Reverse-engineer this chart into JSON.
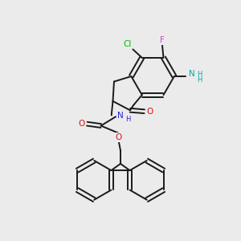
{
  "bg": "#ebebeb",
  "bc": "#1a1a1a",
  "F_color": "#cc44cc",
  "Cl_color": "#00bb00",
  "N_color": "#2222dd",
  "O_color": "#dd1111",
  "NH2_color": "#00aaaa",
  "lw": 1.4,
  "fs": 7.5,
  "fs_s": 6.0,
  "xlim": [
    0,
    10
  ],
  "ylim": [
    0,
    10
  ]
}
